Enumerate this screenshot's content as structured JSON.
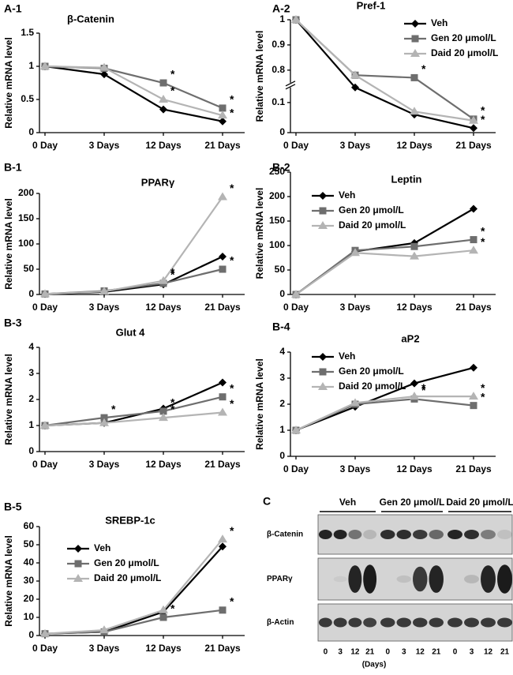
{
  "chart_data": [
    {
      "type": "line",
      "label": "A-1",
      "title": "β-Catenin",
      "y_label": "Relative mRNA level",
      "categories": [
        "0 Day",
        "3 Days",
        "12 Days",
        "21 Days"
      ],
      "ylim": [
        0,
        1.5
      ],
      "yticks": [
        0,
        0.5,
        1,
        1.5
      ],
      "series": [
        {
          "color": "#000000",
          "marker": "diamond",
          "values": [
            1,
            0.88,
            0.35,
            0.17
          ]
        },
        {
          "color": "#6e6e6e",
          "marker": "square",
          "values": [
            1,
            0.97,
            0.75,
            0.37
          ]
        },
        {
          "color": "#b4b4b4",
          "marker": "triangle",
          "values": [
            1,
            0.98,
            0.5,
            0.26
          ]
        }
      ],
      "annotations": [
        {
          "text": "*",
          "series": 1,
          "index": 2
        },
        {
          "text": "*",
          "series": 2,
          "index": 2
        },
        {
          "text": "*",
          "series": 1,
          "index": 3
        },
        {
          "text": "*",
          "series": 0,
          "index": 3
        }
      ]
    },
    {
      "type": "line",
      "label": "A-2",
      "title": "Pref-1",
      "y_label": "Relative mRNA level",
      "categories": [
        "0 Day",
        "3 Days",
        "12 Days",
        "21 Days"
      ],
      "ylim": [
        0,
        1
      ],
      "ybreak": [
        0.15,
        0.75
      ],
      "yticks": [
        0,
        0.1,
        0.8,
        0.9,
        1
      ],
      "legend": "upper right",
      "series": [
        {
          "name": "Veh",
          "color": "#000000",
          "marker": "diamond",
          "values": [
            1,
            0.15,
            0.06,
            0.015
          ]
        },
        {
          "name": "Gen 20 μmol/L",
          "color": "#6e6e6e",
          "marker": "square",
          "values": [
            1,
            0.78,
            0.77,
            0.045
          ]
        },
        {
          "name": "Daid 20 μmol/L",
          "color": "#b4b4b4",
          "marker": "triangle",
          "values": [
            1,
            0.78,
            0.07,
            0.04
          ]
        }
      ],
      "annotations": [
        {
          "text": "*",
          "series": 1,
          "index": 2
        },
        {
          "text": "*",
          "series": 1,
          "index": 3
        },
        {
          "text": "*",
          "series": 0,
          "index": 3
        }
      ]
    },
    {
      "type": "line",
      "label": "B-1",
      "title": "PPARγ",
      "y_label": "Relative mRNA level",
      "categories": [
        "0 Day",
        "3 Days",
        "12 Days",
        "21 Days"
      ],
      "ylim": [
        0,
        200
      ],
      "yticks": [
        0,
        50,
        100,
        150,
        200
      ],
      "series": [
        {
          "color": "#000000",
          "marker": "diamond",
          "values": [
            1,
            5,
            20,
            75
          ]
        },
        {
          "color": "#6e6e6e",
          "marker": "square",
          "values": [
            1,
            7,
            22,
            50
          ]
        },
        {
          "color": "#b4b4b4",
          "marker": "triangle",
          "values": [
            1,
            6,
            27,
            193
          ]
        }
      ],
      "annotations": [
        {
          "text": "*",
          "series": 2,
          "index": 2
        },
        {
          "text": "*",
          "series": 1,
          "index": 2
        },
        {
          "text": "*",
          "series": 2,
          "index": 3
        },
        {
          "text": "*",
          "series": 1,
          "index": 3
        }
      ]
    },
    {
      "type": "line",
      "label": "B-2",
      "title": "Leptin",
      "y_label": "Relative mRNA level",
      "categories": [
        "0 Day",
        "3 Days",
        "12 Days",
        "21 Days"
      ],
      "ylim": [
        0,
        250
      ],
      "yticks": [
        0,
        50,
        100,
        150,
        200,
        250
      ],
      "legend": "upper left",
      "series": [
        {
          "name": "Veh",
          "color": "#000000",
          "marker": "diamond",
          "values": [
            0,
            88,
            105,
            175
          ]
        },
        {
          "name": "Gen 20 μmol/L",
          "color": "#6e6e6e",
          "marker": "square",
          "values": [
            0,
            90,
            98,
            112
          ]
        },
        {
          "name": "Daid 20 μmol/L",
          "color": "#b4b4b4",
          "marker": "triangle",
          "values": [
            0,
            85,
            78,
            90
          ]
        }
      ],
      "annotations": [
        {
          "text": "*",
          "series": 1,
          "index": 3
        },
        {
          "text": "*",
          "series": 2,
          "index": 3
        }
      ]
    },
    {
      "type": "line",
      "label": "B-3",
      "title": "Glut 4",
      "y_label": "Relative mRNA level",
      "categories": [
        "0 Day",
        "3 Days",
        "12 Days",
        "21 Days"
      ],
      "ylim": [
        0,
        4
      ],
      "yticks": [
        0,
        1,
        2,
        3,
        4
      ],
      "series": [
        {
          "color": "#000000",
          "marker": "diamond",
          "values": [
            1,
            1.1,
            1.65,
            2.65
          ]
        },
        {
          "color": "#6e6e6e",
          "marker": "square",
          "values": [
            1,
            1.3,
            1.55,
            2.1
          ]
        },
        {
          "color": "#b4b4b4",
          "marker": "triangle",
          "values": [
            1,
            1.1,
            1.3,
            1.5
          ]
        }
      ],
      "annotations": [
        {
          "text": "*",
          "series": 1,
          "index": 1
        },
        {
          "text": "*",
          "series": 1,
          "index": 2
        },
        {
          "text": "*",
          "series": 2,
          "index": 2
        },
        {
          "text": "*",
          "series": 1,
          "index": 3
        },
        {
          "text": "*",
          "series": 2,
          "index": 3
        }
      ]
    },
    {
      "type": "line",
      "label": "B-4",
      "title": "aP2",
      "y_label": "Relative mRNA level",
      "categories": [
        "0 Day",
        "3 Days",
        "12 Days",
        "21 Days"
      ],
      "ylim": [
        0,
        4
      ],
      "yticks": [
        0,
        1,
        2,
        3,
        4
      ],
      "legend": "upper left",
      "series": [
        {
          "name": "Veh",
          "color": "#000000",
          "marker": "diamond",
          "values": [
            1,
            1.9,
            2.8,
            3.4
          ]
        },
        {
          "name": "Gen 20 μmol/L",
          "color": "#6e6e6e",
          "marker": "square",
          "values": [
            1,
            2.0,
            2.2,
            1.95
          ]
        },
        {
          "name": "Daid 20 μmol/L",
          "color": "#b4b4b4",
          "marker": "triangle",
          "values": [
            1,
            2.05,
            2.3,
            2.3
          ]
        }
      ],
      "annotations": [
        {
          "text": "*",
          "series": 2,
          "index": 2
        },
        {
          "text": "*",
          "series": 1,
          "index": 2
        },
        {
          "text": "*",
          "series": 2,
          "index": 3
        },
        {
          "text": "*",
          "series": 1,
          "index": 3
        }
      ]
    },
    {
      "type": "line",
      "label": "B-5",
      "title": "SREBP-1c",
      "y_label": "Relative mRNA level",
      "categories": [
        "0 Day",
        "3 Days",
        "12 Days",
        "21 Days"
      ],
      "ylim": [
        0,
        60
      ],
      "yticks": [
        0,
        10,
        20,
        30,
        40,
        50,
        60
      ],
      "legend": "upper left",
      "series": [
        {
          "name": "Veh",
          "color": "#000000",
          "marker": "diamond",
          "values": [
            1,
            2,
            13,
            49
          ]
        },
        {
          "name": "Gen 20 μmol/L",
          "color": "#6e6e6e",
          "marker": "square",
          "values": [
            1,
            2,
            10,
            14
          ]
        },
        {
          "name": "Daid 20 μmol/L",
          "color": "#b4b4b4",
          "marker": "triangle",
          "values": [
            1,
            3,
            14,
            53
          ]
        }
      ],
      "annotations": [
        {
          "text": "*",
          "series": 2,
          "index": 3
        },
        {
          "text": "*",
          "series": 1,
          "index": 3
        },
        {
          "text": "*",
          "series": 1,
          "index": 2
        }
      ]
    }
  ],
  "blot": {
    "label": "C",
    "groups": [
      "Veh",
      "Gen 20 μmol/L",
      "Daid 20 μmol/L"
    ],
    "rows": [
      "β-Catenin",
      "PPARγ",
      "β-Actin"
    ],
    "lanes": [
      "0",
      "3",
      "12",
      "21"
    ],
    "x_label": "(Days)"
  }
}
